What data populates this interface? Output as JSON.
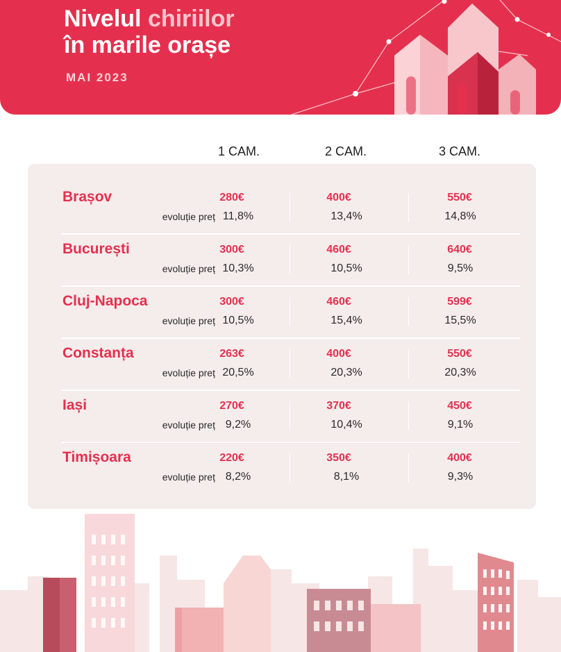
{
  "header": {
    "title_line1_part1": "Nivelul",
    "title_line1_accent": "chiriilor",
    "title_line2": "în marile orașe",
    "date": "MAI 2023"
  },
  "table": {
    "columns": [
      "1 CAM.",
      "2 CAM.",
      "3 CAM."
    ],
    "evolution_label": "evoluție preț",
    "rows": [
      {
        "city": "Brașov",
        "prices": [
          "280€",
          "400€",
          "550€"
        ],
        "changes": [
          "11,8%",
          "13,4%",
          "14,8%"
        ]
      },
      {
        "city": "București",
        "prices": [
          "300€",
          "460€",
          "640€"
        ],
        "changes": [
          "10,3%",
          "10,5%",
          "9,5%"
        ]
      },
      {
        "city": "Cluj-Napoca",
        "prices": [
          "300€",
          "460€",
          "599€"
        ],
        "changes": [
          "10,5%",
          "15,4%",
          "15,5%"
        ]
      },
      {
        "city": "Constanța",
        "prices": [
          "263€",
          "400€",
          "550€"
        ],
        "changes": [
          "20,5%",
          "20,3%",
          "20,3%"
        ]
      },
      {
        "city": "Iași",
        "prices": [
          "270€",
          "370€",
          "450€"
        ],
        "changes": [
          "9,2%",
          "10,4%",
          "9,1%"
        ]
      },
      {
        "city": "Timișoara",
        "prices": [
          "220€",
          "350€",
          "400€"
        ],
        "changes": [
          "8,2%",
          "8,1%",
          "9,3%"
        ]
      }
    ]
  },
  "colors": {
    "brand_red": "#e4304e",
    "card_bg": "#f5ecec",
    "accent_pink": "#ffc4cc"
  }
}
